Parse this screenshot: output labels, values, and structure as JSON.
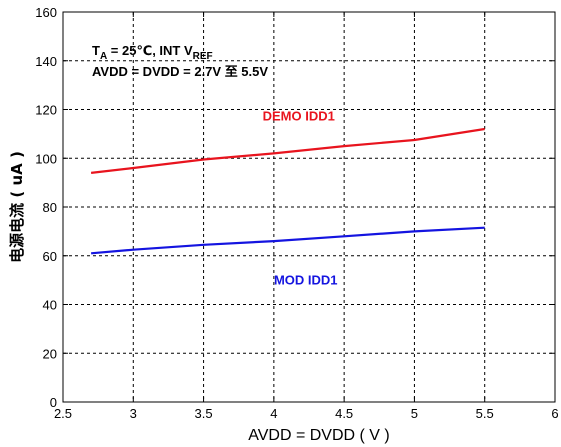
{
  "chart_data": {
    "type": "line",
    "xlabel": "AVDD =  DVDD ( V )",
    "ylabel": "电源电流 ( uA )",
    "xlim": [
      2.5,
      6
    ],
    "ylim": [
      0,
      160
    ],
    "xticks": [
      2.5,
      3,
      3.5,
      4,
      4.5,
      5,
      5.5,
      6
    ],
    "yticks": [
      0,
      20,
      40,
      60,
      80,
      100,
      120,
      140,
      160
    ],
    "xtick_labels": [
      "2.5",
      "3",
      "3.5",
      "4",
      "4.5",
      "5",
      "5.5",
      "6"
    ],
    "ytick_labels": [
      "0",
      "20",
      "40",
      "60",
      "80",
      "100",
      "120",
      "140",
      "160"
    ],
    "grid": true,
    "annotations": {
      "line1": {
        "t": "T",
        "a": "A",
        "eq": " = 25℃, INT  V",
        "ref": "REF"
      },
      "line2": "AVDD = DVDD = 2.7V 至 5.5V"
    },
    "series": [
      {
        "name": "DEMO IDD1",
        "color": "#e8141e",
        "x": [
          2.7,
          3.0,
          3.5,
          4.0,
          4.5,
          5.0,
          5.5
        ],
        "values": [
          94,
          96,
          99.5,
          102,
          105,
          107.5,
          112
        ]
      },
      {
        "name": "MOD IDD1",
        "color": "#1414e0",
        "x": [
          2.7,
          3.0,
          3.5,
          4.0,
          4.5,
          5.0,
          5.5
        ],
        "values": [
          61,
          62.5,
          64.5,
          66,
          68,
          70,
          71.5
        ]
      }
    ]
  }
}
